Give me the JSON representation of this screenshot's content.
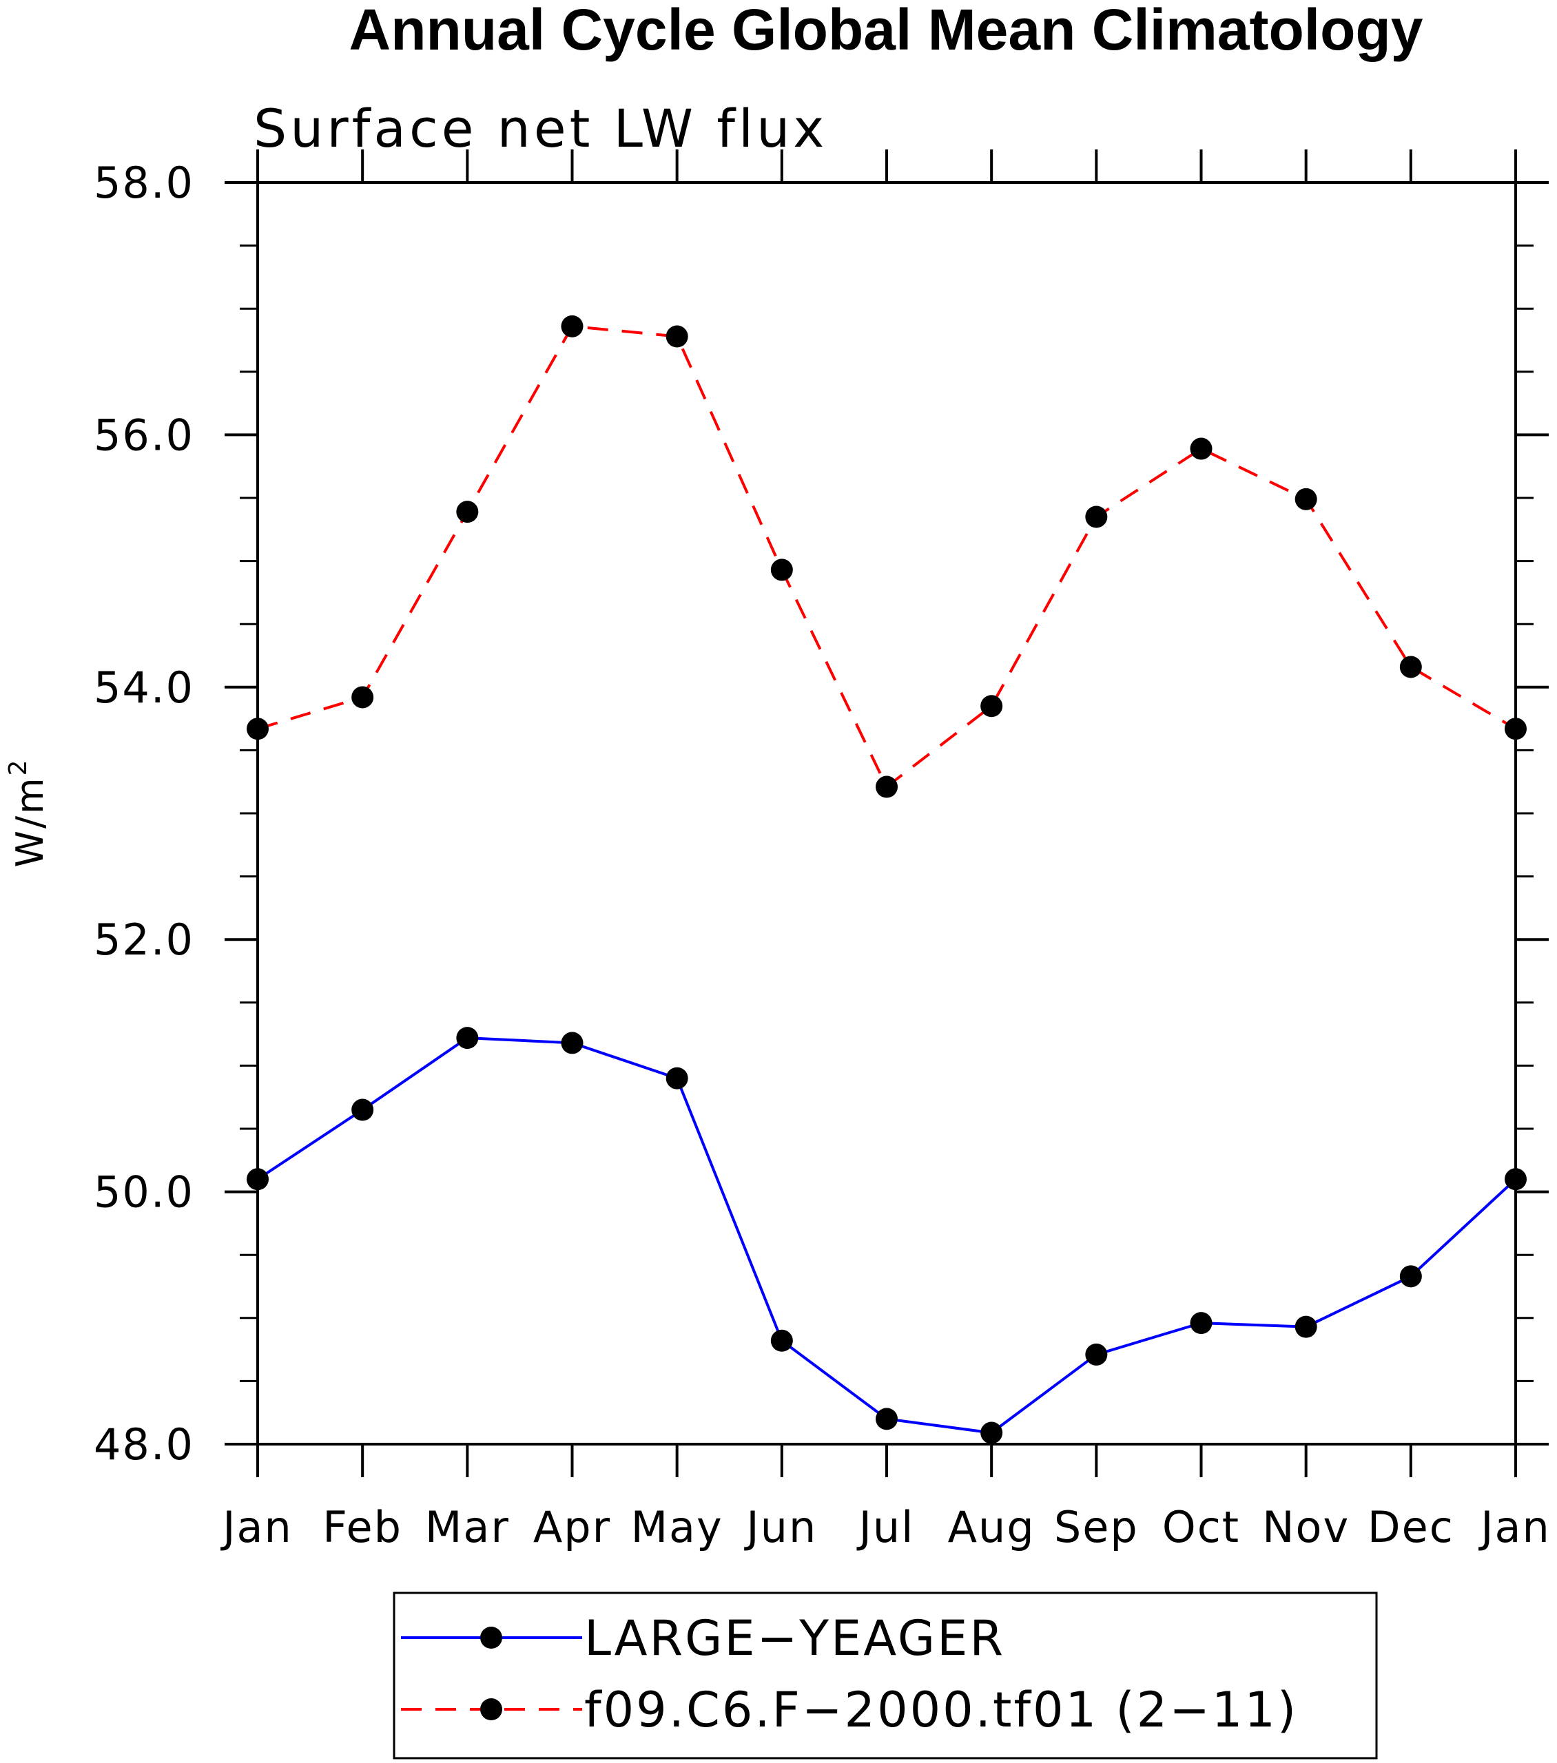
{
  "chart_data": {
    "type": "line",
    "title": "Annual Cycle Global Mean Climatology",
    "subtitle": "Surface net LW flux",
    "ylabel": "W/m",
    "ylabel_superscript": "2",
    "xlabel": "",
    "categories": [
      "Jan",
      "Feb",
      "Mar",
      "Apr",
      "May",
      "Jun",
      "Jul",
      "Aug",
      "Sep",
      "Oct",
      "Nov",
      "Dec",
      "Jan"
    ],
    "ylim": [
      48.0,
      58.0
    ],
    "yticks": [
      "48.0",
      "50.0",
      "52.0",
      "54.0",
      "56.0",
      "58.0"
    ],
    "ytick_values": [
      48,
      50,
      52,
      54,
      56,
      58
    ],
    "y_minor_step": 0.5,
    "grid": false,
    "legend_position": "bottom",
    "series": [
      {
        "name": "LARGE−YEAGER",
        "color": "#0000ff",
        "line_style": "solid",
        "marker": "filled-circle",
        "values": [
          50.1,
          50.65,
          51.22,
          51.18,
          50.9,
          48.82,
          48.2,
          48.09,
          48.71,
          48.96,
          48.93,
          49.33,
          50.1
        ]
      },
      {
        "name": "f09.C6.F−2000.tf01 (2−11)",
        "color": "#ff0000",
        "line_style": "dashed",
        "marker": "filled-circle",
        "values": [
          53.67,
          53.92,
          55.39,
          56.86,
          56.78,
          54.93,
          53.21,
          53.85,
          55.35,
          55.89,
          55.49,
          54.16,
          53.67
        ]
      }
    ]
  }
}
